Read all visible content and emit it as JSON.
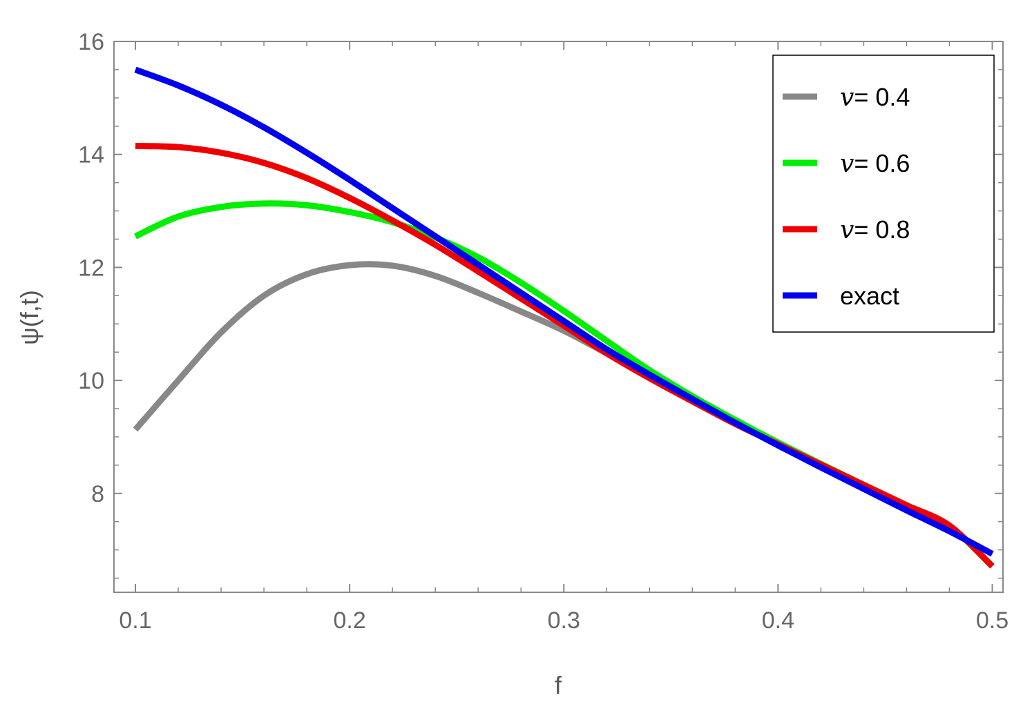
{
  "chart_data": {
    "type": "line",
    "xlabel": "f",
    "ylabel": "ψ(f,t)",
    "xlim": [
      0.09,
      0.505
    ],
    "ylim": [
      6.25,
      16.0
    ],
    "x_ticks": [
      "0.1",
      "0.2",
      "0.3",
      "0.4",
      "0.5"
    ],
    "y_ticks": [
      "8",
      "10",
      "12",
      "14",
      "16"
    ],
    "x_tick_values": [
      0.1,
      0.2,
      0.3,
      0.4,
      0.5
    ],
    "y_tick_values": [
      8,
      10,
      12,
      14,
      16
    ],
    "grid": false,
    "legend_position": "top-right",
    "x": [
      0.1,
      0.12,
      0.14,
      0.16,
      0.18,
      0.2,
      0.22,
      0.24,
      0.26,
      0.28,
      0.3,
      0.32,
      0.34,
      0.36,
      0.38,
      0.4,
      0.42,
      0.44,
      0.46,
      0.48,
      0.5
    ],
    "series": [
      {
        "name": "v= 0.4",
        "legend_prefix": "v",
        "legend_value": "= 0.4",
        "color": "#888888",
        "values": [
          9.13,
          10.0,
          10.85,
          11.5,
          11.88,
          12.04,
          12.03,
          11.85,
          11.55,
          11.22,
          10.88,
          10.48,
          10.08,
          9.68,
          9.28,
          8.9,
          8.52,
          8.15,
          7.78,
          7.42,
          6.71
        ]
      },
      {
        "name": "v= 0.6",
        "legend_prefix": "v",
        "legend_value": "= 0.6",
        "color": "#00ee00",
        "values": [
          12.55,
          12.9,
          13.07,
          13.13,
          13.1,
          12.98,
          12.8,
          12.53,
          12.18,
          11.73,
          11.23,
          10.7,
          10.18,
          9.72,
          9.3,
          8.9,
          8.52,
          8.15,
          7.78,
          7.42,
          6.71
        ]
      },
      {
        "name": "v= 0.8",
        "legend_prefix": "v",
        "legend_value": "= 0.8",
        "color": "#ee0000",
        "values": [
          14.15,
          14.13,
          14.03,
          13.85,
          13.58,
          13.23,
          12.83,
          12.4,
          11.93,
          11.45,
          10.97,
          10.48,
          10.04,
          9.63,
          9.23,
          8.87,
          8.51,
          8.15,
          7.79,
          7.43,
          6.71
        ]
      },
      {
        "name": "exact",
        "legend_prefix": "",
        "legend_value": "exact",
        "color": "#0000ee",
        "values": [
          15.5,
          15.22,
          14.88,
          14.48,
          14.03,
          13.55,
          13.05,
          12.55,
          12.05,
          11.55,
          11.05,
          10.55,
          10.1,
          9.67,
          9.25,
          8.85,
          8.46,
          8.08,
          7.7,
          7.33,
          6.93
        ]
      }
    ]
  }
}
